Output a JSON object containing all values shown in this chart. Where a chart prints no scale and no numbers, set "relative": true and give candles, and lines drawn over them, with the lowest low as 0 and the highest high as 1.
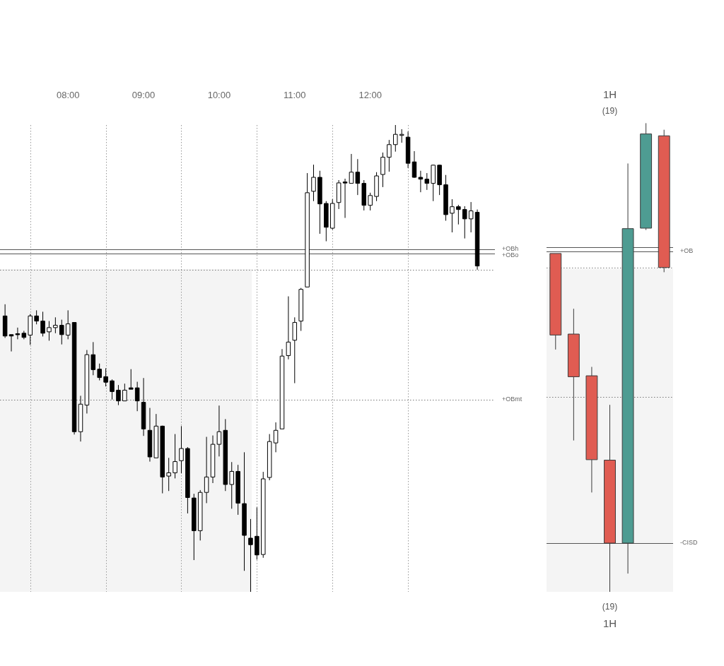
{
  "chart_data": [
    {
      "type": "candlestick",
      "relative": true,
      "xlim": [
        7.1,
        13.65
      ],
      "xticks": [
        {
          "value": 8,
          "label": "08:00"
        },
        {
          "value": 9,
          "label": "09:00"
        },
        {
          "value": 10,
          "label": "10:00"
        },
        {
          "value": 11,
          "label": "11:00"
        },
        {
          "value": 12,
          "label": "12:00"
        }
      ],
      "x": [
        7.1667,
        7.25,
        7.3333,
        7.4167,
        7.5,
        7.5833,
        7.6667,
        7.75,
        7.8333,
        7.9167,
        8,
        8.0833,
        8.1667,
        8.25,
        8.3333,
        8.4167,
        8.5,
        8.5833,
        8.6667,
        8.75,
        8.8333,
        8.9167,
        9,
        9.0833,
        9.1667,
        9.25,
        9.3333,
        9.4167,
        9.5,
        9.5833,
        9.6667,
        9.75,
        9.8333,
        9.9167,
        10,
        10.0833,
        10.1667,
        10.25,
        10.3333,
        10.4167,
        10.5,
        10.5833,
        10.6667,
        10.75,
        10.8333,
        10.9167,
        11,
        11.0833,
        11.1667,
        11.25,
        11.3333,
        11.4167,
        11.5,
        11.5833,
        11.6667,
        11.75,
        11.8333,
        11.9167,
        12,
        12.0833,
        12.1667,
        12.25,
        12.3333,
        12.4167,
        12.5,
        12.5833,
        12.6667,
        12.75,
        12.8333,
        12.9167,
        13,
        13.0833,
        13.1667,
        13.25,
        13.3333,
        13.4167
      ],
      "ohlc": [
        [
          0.591,
          0.616,
          0.544,
          0.548
        ],
        [
          0.551,
          0.551,
          0.515,
          0.548
        ],
        [
          0.553,
          0.566,
          0.541,
          0.553
        ],
        [
          0.554,
          0.559,
          0.541,
          0.545
        ],
        [
          0.55,
          0.595,
          0.529,
          0.591
        ],
        [
          0.591,
          0.603,
          0.573,
          0.58
        ],
        [
          0.58,
          0.6,
          0.547,
          0.554
        ],
        [
          0.557,
          0.58,
          0.538,
          0.566
        ],
        [
          0.566,
          0.588,
          0.554,
          0.571
        ],
        [
          0.571,
          0.583,
          0.53,
          0.551
        ],
        [
          0.55,
          0.603,
          0.541,
          0.574
        ],
        [
          0.577,
          0.577,
          0.337,
          0.343
        ],
        [
          0.343,
          0.42,
          0.322,
          0.402
        ],
        [
          0.4,
          0.518,
          0.382,
          0.508
        ],
        [
          0.508,
          0.535,
          0.464,
          0.476
        ],
        [
          0.477,
          0.489,
          0.453,
          0.459
        ],
        [
          0.461,
          0.479,
          0.44,
          0.449
        ],
        [
          0.452,
          0.455,
          0.412,
          0.429
        ],
        [
          0.432,
          0.443,
          0.4,
          0.409
        ],
        [
          0.409,
          0.446,
          0.409,
          0.432
        ],
        [
          0.437,
          0.477,
          0.434,
          0.434
        ],
        [
          0.437,
          0.45,
          0.387,
          0.409
        ],
        [
          0.406,
          0.458,
          0.334,
          0.349
        ],
        [
          0.346,
          0.394,
          0.279,
          0.289
        ],
        [
          0.287,
          0.381,
          0.287,
          0.355
        ],
        [
          0.355,
          0.356,
          0.211,
          0.246
        ],
        [
          0.248,
          0.287,
          0.216,
          0.255
        ],
        [
          0.255,
          0.338,
          0.243,
          0.279
        ],
        [
          0.281,
          0.355,
          0.254,
          0.307
        ],
        [
          0.307,
          0.31,
          0.168,
          0.202
        ],
        [
          0.201,
          0.21,
          0.068,
          0.131
        ],
        [
          0.131,
          0.218,
          0.11,
          0.213
        ],
        [
          0.213,
          0.332,
          0.19,
          0.246
        ],
        [
          0.246,
          0.335,
          0.233,
          0.316
        ],
        [
          0.316,
          0.399,
          0.29,
          0.343
        ],
        [
          0.346,
          0.37,
          0.216,
          0.23
        ],
        [
          0.23,
          0.278,
          0.178,
          0.258
        ],
        [
          0.258,
          0.272,
          0.165,
          0.19
        ],
        [
          0.189,
          0.299,
          0.045,
          0.121
        ],
        [
          0.115,
          0.156,
          0,
          0.101
        ],
        [
          0.119,
          0.181,
          0.069,
          0.079
        ],
        [
          0.08,
          0.257,
          0.073,
          0.242
        ],
        [
          0.245,
          0.338,
          0.239,
          0.322
        ],
        [
          0.319,
          0.363,
          0.299,
          0.346
        ],
        [
          0.349,
          0.52,
          0.349,
          0.505
        ],
        [
          0.506,
          0.633,
          0.498,
          0.535
        ],
        [
          0.539,
          0.588,
          0.447,
          0.577
        ],
        [
          0.58,
          0.651,
          0.559,
          0.648
        ],
        [
          0.653,
          0.897,
          0.653,
          0.855
        ],
        [
          0.858,
          0.915,
          0.837,
          0.888
        ],
        [
          0.888,
          0.902,
          0.767,
          0.831
        ],
        [
          0.832,
          0.837,
          0.751,
          0.781
        ],
        [
          0.779,
          0.841,
          0.776,
          0.832
        ],
        [
          0.834,
          0.882,
          0.82,
          0.876
        ],
        [
          0.878,
          0.885,
          0.801,
          0.876
        ],
        [
          0.875,
          0.938,
          0.875,
          0.899
        ],
        [
          0.899,
          0.927,
          0.85,
          0.875
        ],
        [
          0.875,
          0.882,
          0.817,
          0.828
        ],
        [
          0.828,
          0.855,
          0.817,
          0.849
        ],
        [
          0.847,
          0.899,
          0.837,
          0.891
        ],
        [
          0.894,
          0.941,
          0.867,
          0.931
        ],
        [
          0.931,
          0.968,
          0.9,
          0.958
        ],
        [
          0.958,
          1,
          0.943,
          0.98
        ],
        [
          0.979,
          0.991,
          0.962,
          0.98
        ],
        [
          0.974,
          0.986,
          0.908,
          0.918
        ],
        [
          0.921,
          0.944,
          0.887,
          0.888
        ],
        [
          0.888,
          0.902,
          0.856,
          0.884
        ],
        [
          0.884,
          0.897,
          0.861,
          0.875
        ],
        [
          0.875,
          0.915,
          0.837,
          0.914
        ],
        [
          0.914,
          0.915,
          0.85,
          0.872
        ],
        [
          0.872,
          0.893,
          0.795,
          0.808
        ],
        [
          0.811,
          0.841,
          0.77,
          0.825
        ],
        [
          0.825,
          0.829,
          0.787,
          0.819
        ],
        [
          0.819,
          0.826,
          0.757,
          0.799
        ],
        [
          0.799,
          0.835,
          0.77,
          0.816
        ],
        [
          0.813,
          0.819,
          0.69,
          0.698
        ]
      ],
      "colors": [
        "#000000",
        "#000000",
        "#000000",
        "#000000",
        "#ffffff",
        "#000000",
        "#000000",
        "#ffffff",
        "#ffffff",
        "#000000",
        "#ffffff",
        "#000000",
        "#ffffff",
        "#ffffff",
        "#000000",
        "#000000",
        "#000000",
        "#000000",
        "#000000",
        "#ffffff",
        "#000000",
        "#000000",
        "#000000",
        "#000000",
        "#ffffff",
        "#000000",
        "#ffffff",
        "#ffffff",
        "#ffffff",
        "#000000",
        "#000000",
        "#ffffff",
        "#ffffff",
        "#ffffff",
        "#ffffff",
        "#000000",
        "#ffffff",
        "#000000",
        "#000000",
        "#000000",
        "#000000",
        "#ffffff",
        "#ffffff",
        "#ffffff",
        "#ffffff",
        "#ffffff",
        "#ffffff",
        "#ffffff",
        "#ffffff",
        "#ffffff",
        "#000000",
        "#000000",
        "#ffffff",
        "#ffffff",
        "#000000",
        "#ffffff",
        "#000000",
        "#000000",
        "#ffffff",
        "#ffffff",
        "#ffffff",
        "#ffffff",
        "#ffffff",
        "#ffffff",
        "#000000",
        "#000000",
        "#000000",
        "#000000",
        "#ffffff",
        "#000000",
        "#000000",
        "#ffffff",
        "#000000",
        "#000000",
        "#ffffff",
        "#000000"
      ],
      "ref_lines": [
        {
          "axis": "x",
          "value": 7.5,
          "label": null,
          "line_style": "dotted",
          "color": "#999999"
        },
        {
          "axis": "x",
          "value": 8.5,
          "label": null,
          "line_style": "dotted",
          "color": "#999999"
        },
        {
          "axis": "x",
          "value": 9.5,
          "label": null,
          "line_style": "dotted",
          "color": "#999999"
        },
        {
          "axis": "x",
          "value": 10.5,
          "label": null,
          "line_style": "dotted",
          "color": "#999999"
        },
        {
          "axis": "x",
          "value": 11.5,
          "label": null,
          "line_style": "dotted",
          "color": "#999999"
        },
        {
          "axis": "x",
          "value": 12.5,
          "label": null,
          "line_style": "dotted",
          "color": "#999999"
        },
        {
          "axis": "y",
          "value": 0.734,
          "label": "+OBh",
          "line_style": "solid",
          "color": "#555555"
        },
        {
          "axis": "y",
          "value": 0.725,
          "label": "+OBo",
          "line_style": "solid",
          "color": "#555555"
        },
        {
          "axis": "y",
          "value": 0.69,
          "label": null,
          "line_style": "dotted",
          "color": "#777777"
        },
        {
          "axis": "y",
          "value": 0.412,
          "label": "+OBmt",
          "line_style": "dotted",
          "color": "#777777"
        }
      ]
    },
    {
      "type": "candlestick",
      "relative": true,
      "title": "1H",
      "subtitle": "(19)",
      "categories": [
        null,
        null,
        null,
        null,
        null,
        null,
        null
      ],
      "ohlc": [
        [
          0.722,
          0.722,
          0.517,
          0.548
        ],
        [
          0.55,
          0.604,
          0.323,
          0.459
        ],
        [
          0.461,
          0.48,
          0.212,
          0.282
        ],
        [
          0.281,
          0.399,
          0,
          0.104
        ],
        [
          0.104,
          0.914,
          0.039,
          0.775
        ],
        [
          0.776,
          1,
          0.772,
          0.977
        ],
        [
          0.973,
          0.986,
          0.682,
          0.692
        ]
      ],
      "colors": [
        "#e05c52",
        "#e05c52",
        "#e05c52",
        "#e05c52",
        "#4e9c92",
        "#4e9c92",
        "#e05c52"
      ],
      "ref_lines": [
        {
          "axis": "y",
          "value": 0.736,
          "label": null,
          "line_style": "solid",
          "color": "#555555"
        },
        {
          "axis": "y",
          "value": 0.727,
          "label": "+OB",
          "line_style": "solid",
          "color": "#555555"
        },
        {
          "axis": "y",
          "value": 0.692,
          "label": null,
          "line_style": "dotted",
          "color": "#777777"
        },
        {
          "axis": "y",
          "value": 0.416,
          "label": null,
          "line_style": "dotted",
          "color": "#777777"
        },
        {
          "axis": "y",
          "value": 0.104,
          "label": "-CISD",
          "line_style": "solid",
          "color": "#555555"
        }
      ],
      "annotations": [
        "(19)",
        "1H"
      ]
    }
  ]
}
